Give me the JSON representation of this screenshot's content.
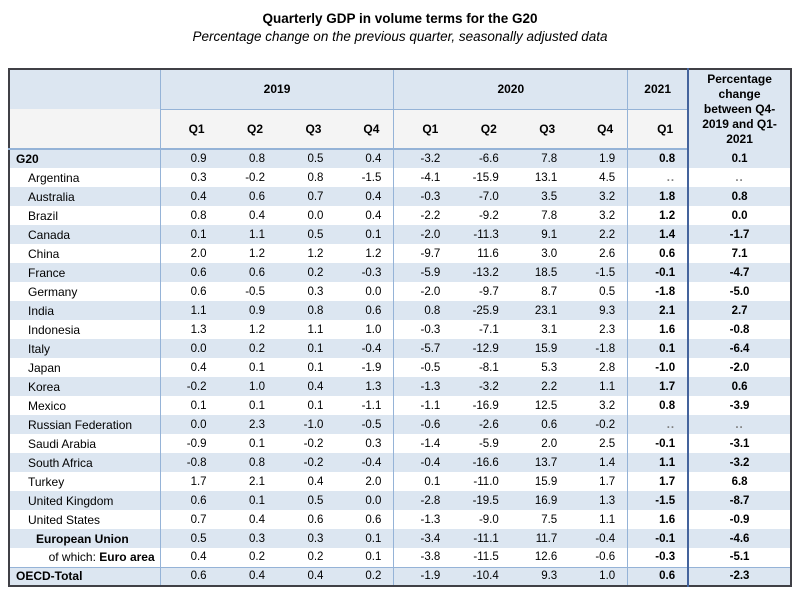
{
  "title": "Quarterly GDP in volume terms for the G20",
  "subtitle": "Percentage change on the previous quarter, seasonally adjusted data",
  "chart_data": {
    "type": "table",
    "title": "Quarterly GDP in volume terms for the G20",
    "subtitle": "Percentage change on the previous quarter, seasonally adjusted data",
    "column_groups": [
      {
        "label": "2019",
        "quarters": [
          "Q1",
          "Q2",
          "Q3",
          "Q4"
        ]
      },
      {
        "label": "2020",
        "quarters": [
          "Q1",
          "Q2",
          "Q3",
          "Q4"
        ]
      },
      {
        "label": "2021",
        "quarters": [
          "Q1"
        ]
      }
    ],
    "pct_header": "Percentage change between Q4-2019 and Q1-2021",
    "missing_value": "..",
    "rows": [
      {
        "label": "G20",
        "bold": true,
        "level": 0,
        "values": [
          "0.9",
          "0.8",
          "0.5",
          "0.4",
          "-3.2",
          "-6.6",
          "7.8",
          "1.9"
        ],
        "q1_2021": "0.8",
        "pct": "0.1"
      },
      {
        "label": "Argentina",
        "bold": false,
        "level": 1,
        "values": [
          "0.3",
          "-0.2",
          "0.8",
          "-1.5",
          "-4.1",
          "-15.9",
          "13.1",
          "4.5"
        ],
        "q1_2021": "..",
        "pct": ".."
      },
      {
        "label": "Australia",
        "bold": false,
        "level": 1,
        "values": [
          "0.4",
          "0.6",
          "0.7",
          "0.4",
          "-0.3",
          "-7.0",
          "3.5",
          "3.2"
        ],
        "q1_2021": "1.8",
        "pct": "0.8"
      },
      {
        "label": "Brazil",
        "bold": false,
        "level": 1,
        "values": [
          "0.8",
          "0.4",
          "0.0",
          "0.4",
          "-2.2",
          "-9.2",
          "7.8",
          "3.2"
        ],
        "q1_2021": "1.2",
        "pct": "0.0"
      },
      {
        "label": "Canada",
        "bold": false,
        "level": 1,
        "values": [
          "0.1",
          "1.1",
          "0.5",
          "0.1",
          "-2.0",
          "-11.3",
          "9.1",
          "2.2"
        ],
        "q1_2021": "1.4",
        "pct": "-1.7"
      },
      {
        "label": "China",
        "bold": false,
        "level": 1,
        "values": [
          "2.0",
          "1.2",
          "1.2",
          "1.2",
          "-9.7",
          "11.6",
          "3.0",
          "2.6"
        ],
        "q1_2021": "0.6",
        "pct": "7.1"
      },
      {
        "label": "France",
        "bold": false,
        "level": 1,
        "values": [
          "0.6",
          "0.6",
          "0.2",
          "-0.3",
          "-5.9",
          "-13.2",
          "18.5",
          "-1.5"
        ],
        "q1_2021": "-0.1",
        "pct": "-4.7"
      },
      {
        "label": "Germany",
        "bold": false,
        "level": 1,
        "values": [
          "0.6",
          "-0.5",
          "0.3",
          "0.0",
          "-2.0",
          "-9.7",
          "8.7",
          "0.5"
        ],
        "q1_2021": "-1.8",
        "pct": "-5.0"
      },
      {
        "label": "India",
        "bold": false,
        "level": 1,
        "values": [
          "1.1",
          "0.9",
          "0.8",
          "0.6",
          "0.8",
          "-25.9",
          "23.1",
          "9.3"
        ],
        "q1_2021": "2.1",
        "pct": "2.7"
      },
      {
        "label": "Indonesia",
        "bold": false,
        "level": 1,
        "values": [
          "1.3",
          "1.2",
          "1.1",
          "1.0",
          "-0.3",
          "-7.1",
          "3.1",
          "2.3"
        ],
        "q1_2021": "1.6",
        "pct": "-0.8"
      },
      {
        "label": "Italy",
        "bold": false,
        "level": 1,
        "values": [
          "0.0",
          "0.2",
          "0.1",
          "-0.4",
          "-5.7",
          "-12.9",
          "15.9",
          "-1.8"
        ],
        "q1_2021": "0.1",
        "pct": "-6.4"
      },
      {
        "label": "Japan",
        "bold": false,
        "level": 1,
        "values": [
          "0.4",
          "0.1",
          "0.1",
          "-1.9",
          "-0.5",
          "-8.1",
          "5.3",
          "2.8"
        ],
        "q1_2021": "-1.0",
        "pct": "-2.0"
      },
      {
        "label": "Korea",
        "bold": false,
        "level": 1,
        "values": [
          "-0.2",
          "1.0",
          "0.4",
          "1.3",
          "-1.3",
          "-3.2",
          "2.2",
          "1.1"
        ],
        "q1_2021": "1.7",
        "pct": "0.6"
      },
      {
        "label": "Mexico",
        "bold": false,
        "level": 1,
        "values": [
          "0.1",
          "0.1",
          "0.1",
          "-1.1",
          "-1.1",
          "-16.9",
          "12.5",
          "3.2"
        ],
        "q1_2021": "0.8",
        "pct": "-3.9"
      },
      {
        "label": "Russian Federation",
        "bold": false,
        "level": 1,
        "values": [
          "0.0",
          "2.3",
          "-1.0",
          "-0.5",
          "-0.6",
          "-2.6",
          "0.6",
          "-0.2"
        ],
        "q1_2021": "..",
        "pct": ".."
      },
      {
        "label": "Saudi Arabia",
        "bold": false,
        "level": 1,
        "values": [
          "-0.9",
          "0.1",
          "-0.2",
          "0.3",
          "-1.4",
          "-5.9",
          "2.0",
          "2.5"
        ],
        "q1_2021": "-0.1",
        "pct": "-3.1"
      },
      {
        "label": "South Africa",
        "bold": false,
        "level": 1,
        "values": [
          "-0.8",
          "0.8",
          "-0.2",
          "-0.4",
          "-0.4",
          "-16.6",
          "13.7",
          "1.4"
        ],
        "q1_2021": "1.1",
        "pct": "-3.2"
      },
      {
        "label": "Turkey",
        "bold": false,
        "level": 1,
        "values": [
          "1.7",
          "2.1",
          "0.4",
          "2.0",
          "0.1",
          "-11.0",
          "15.9",
          "1.7"
        ],
        "q1_2021": "1.7",
        "pct": "6.8"
      },
      {
        "label": "United Kingdom",
        "bold": false,
        "level": 1,
        "values": [
          "0.6",
          "0.1",
          "0.5",
          "0.0",
          "-2.8",
          "-19.5",
          "16.9",
          "1.3"
        ],
        "q1_2021": "-1.5",
        "pct": "-8.7"
      },
      {
        "label": "United States",
        "bold": false,
        "level": 1,
        "values": [
          "0.7",
          "0.4",
          "0.6",
          "0.6",
          "-1.3",
          "-9.0",
          "7.5",
          "1.1"
        ],
        "q1_2021": "1.6",
        "pct": "-0.9"
      },
      {
        "label": "European Union",
        "bold": true,
        "level": 2,
        "values": [
          "0.5",
          "0.3",
          "0.3",
          "0.1",
          "-3.4",
          "-11.1",
          "11.7",
          "-0.4"
        ],
        "q1_2021": "-0.1",
        "pct": "-4.6"
      },
      {
        "label": "Euro area",
        "prefix": "of which: ",
        "bold": true,
        "level": 1,
        "align": "right",
        "values": [
          "0.4",
          "0.2",
          "0.2",
          "0.1",
          "-3.8",
          "-11.5",
          "12.6",
          "-0.6"
        ],
        "q1_2021": "-0.3",
        "pct": "-5.1"
      },
      {
        "label": "OECD-Total",
        "bold": true,
        "level": 0,
        "topline": true,
        "values": [
          "0.6",
          "0.4",
          "0.4",
          "0.2",
          "-1.9",
          "-10.4",
          "9.3",
          "1.0"
        ],
        "q1_2021": "0.6",
        "pct": "-2.3"
      }
    ]
  },
  "colors": {
    "stripe_row": "#dce6f1",
    "header_band": "#dce6f1",
    "quarter_band": "#f4f4f4",
    "grid_line": "#95b3d7",
    "separator_line": "#44639c",
    "outer_border": "#404046",
    "missing_text": "#7f7f7f"
  }
}
